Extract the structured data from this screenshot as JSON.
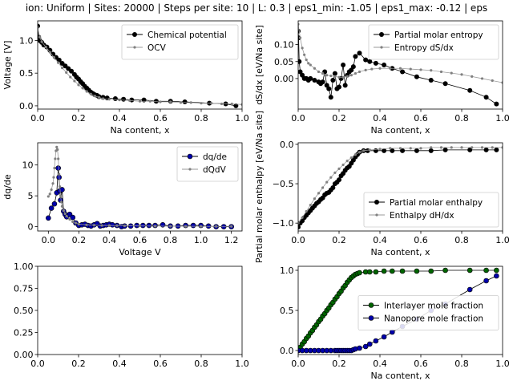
{
  "figure": {
    "title": "ion: Uniform | Sites: 20000 | Steps per site: 10 | L: 0.3 | eps1_min: -1.05 | eps1_max: -0.12 | eps"
  },
  "chart_data": [
    {
      "type": "line",
      "xlabel": "Na content, x",
      "ylabel": "Voltage [V]",
      "xlim": [
        0,
        1
      ],
      "ylim": [
        -0.05,
        1.3
      ],
      "xticks": [
        "0.0",
        "0.2",
        "0.4",
        "0.6",
        "0.8",
        "1.0"
      ],
      "yticks": [
        "0.0",
        "0.5",
        "1.0"
      ],
      "ytick_values": [
        0,
        0.5,
        1.0
      ],
      "xtick_values": [
        0,
        0.2,
        0.4,
        0.6,
        0.8,
        1.0
      ],
      "legend": "top-right",
      "series": [
        {
          "name": "Chemical potential",
          "style": "dots",
          "color": "#000000",
          "x": [
            0,
            0.005,
            0.01,
            0.02,
            0.03,
            0.045,
            0.06,
            0.075,
            0.09,
            0.105,
            0.12,
            0.135,
            0.15,
            0.165,
            0.18,
            0.19,
            0.2,
            0.21,
            0.22,
            0.23,
            0.24,
            0.25,
            0.26,
            0.27,
            0.28,
            0.29,
            0.3,
            0.32,
            0.34,
            0.38,
            0.42,
            0.46,
            0.52,
            0.58,
            0.65,
            0.72,
            0.84,
            0.92,
            0.97
          ],
          "y": [
            1.22,
            1.05,
            1.0,
            0.97,
            0.93,
            0.9,
            0.85,
            0.79,
            0.74,
            0.7,
            0.65,
            0.61,
            0.57,
            0.53,
            0.48,
            0.44,
            0.41,
            0.37,
            0.34,
            0.3,
            0.27,
            0.24,
            0.21,
            0.19,
            0.17,
            0.16,
            0.14,
            0.13,
            0.12,
            0.11,
            0.1,
            0.09,
            0.09,
            0.07,
            0.07,
            0.06,
            0.04,
            0.03,
            0.0
          ]
        },
        {
          "name": "OCV",
          "style": "small",
          "color": "#808080",
          "x": [
            0,
            0.01,
            0.02,
            0.04,
            0.06,
            0.08,
            0.1,
            0.12,
            0.14,
            0.16,
            0.18,
            0.2,
            0.22,
            0.24,
            0.26,
            0.28,
            0.3,
            0.32,
            0.35,
            0.4,
            0.45,
            0.5,
            0.55,
            0.6,
            0.65,
            0.7,
            0.75,
            0.8,
            0.85,
            0.9,
            0.95,
            1.0
          ],
          "y": [
            1.2,
            1.05,
            0.98,
            0.9,
            0.82,
            0.74,
            0.66,
            0.58,
            0.51,
            0.44,
            0.38,
            0.32,
            0.27,
            0.22,
            0.18,
            0.15,
            0.13,
            0.11,
            0.1,
            0.09,
            0.08,
            0.07,
            0.07,
            0.06,
            0.06,
            0.05,
            0.05,
            0.04,
            0.04,
            0.03,
            0.03,
            0.02
          ]
        }
      ]
    },
    {
      "type": "line",
      "xlabel": "Na content, x",
      "ylabel": "dS/dx [eV/Na site]",
      "xlim": [
        0,
        1
      ],
      "ylim": [
        -0.09,
        0.17
      ],
      "xticks": [
        "0.0",
        "0.2",
        "0.4",
        "0.6",
        "0.8",
        "1.0"
      ],
      "yticks": [
        "0.00",
        "0.05",
        "0.10"
      ],
      "ytick_values": [
        0,
        0.05,
        0.1
      ],
      "xtick_values": [
        0,
        0.2,
        0.4,
        0.6,
        0.8,
        1.0
      ],
      "legend": "top-right",
      "series": [
        {
          "name": "Partial molar entropy",
          "style": "dots",
          "color": "#000000",
          "x": [
            0,
            0.002,
            0.005,
            0.01,
            0.02,
            0.03,
            0.04,
            0.05,
            0.06,
            0.08,
            0.1,
            0.11,
            0.12,
            0.13,
            0.14,
            0.15,
            0.16,
            0.17,
            0.18,
            0.19,
            0.2,
            0.21,
            0.22,
            0.23,
            0.24,
            0.25,
            0.26,
            0.27,
            0.28,
            0.3,
            0.33,
            0.35,
            0.38,
            0.42,
            0.46,
            0.51,
            0.58,
            0.65,
            0.72,
            0.84,
            0.92,
            0.97
          ],
          "y": [
            0.14,
            0.12,
            0.05,
            0.02,
            0.01,
            0.0,
            0.0,
            -0.005,
            0.0,
            -0.005,
            -0.01,
            -0.015,
            -0.01,
            0.02,
            -0.02,
            -0.03,
            -0.055,
            -0.005,
            0.015,
            -0.03,
            -0.025,
            0.0,
            0.04,
            -0.02,
            0.01,
            0.02,
            0.025,
            0.035,
            0.065,
            0.075,
            0.055,
            0.05,
            0.045,
            0.04,
            0.03,
            0.02,
            0.005,
            -0.005,
            -0.015,
            -0.035,
            -0.055,
            -0.075
          ]
        },
        {
          "name": "Entropy dS/dx",
          "style": "small",
          "color": "#808080",
          "x": [
            0,
            0.01,
            0.02,
            0.03,
            0.04,
            0.05,
            0.06,
            0.08,
            0.1,
            0.12,
            0.14,
            0.16,
            0.18,
            0.2,
            0.22,
            0.24,
            0.26,
            0.28,
            0.3,
            0.33,
            0.36,
            0.4,
            0.45,
            0.5,
            0.55,
            0.6,
            0.65,
            0.7,
            0.75,
            0.8,
            0.85,
            0.9,
            0.95,
            1.0
          ],
          "y": [
            0.16,
            0.12,
            0.09,
            0.07,
            0.055,
            0.045,
            0.04,
            0.03,
            0.02,
            0.015,
            0.01,
            0.008,
            0.006,
            0.004,
            0.004,
            0.006,
            0.01,
            0.015,
            0.02,
            0.025,
            0.028,
            0.03,
            0.03,
            0.03,
            0.028,
            0.026,
            0.024,
            0.02,
            0.016,
            0.012,
            0.006,
            0.0,
            -0.006,
            -0.012
          ]
        }
      ]
    },
    {
      "type": "line",
      "xlabel": "Voltage V",
      "ylabel": "dq/de",
      "xlim": [
        -0.07,
        1.27
      ],
      "ylim": [
        -0.7,
        13.6
      ],
      "xticks": [
        "0.0",
        "0.2",
        "0.4",
        "0.6",
        "0.8",
        "1.0",
        "1.2"
      ],
      "yticks": [
        "0",
        "5",
        "10"
      ],
      "ytick_values": [
        0,
        5,
        10
      ],
      "xtick_values": [
        0,
        0.2,
        0.4,
        0.6,
        0.8,
        1.0,
        1.2
      ],
      "legend": "top-right",
      "series": [
        {
          "name": "dq/de",
          "style": "bluedots",
          "color": "#0000aa",
          "x": [
            0.0,
            0.02,
            0.04,
            0.055,
            0.065,
            0.07,
            0.075,
            0.08,
            0.09,
            0.1,
            0.11,
            0.12,
            0.14,
            0.16,
            0.18,
            0.2,
            0.22,
            0.24,
            0.26,
            0.28,
            0.3,
            0.32,
            0.34,
            0.36,
            0.38,
            0.4,
            0.42,
            0.45,
            0.48,
            0.5,
            0.54,
            0.58,
            0.62,
            0.66,
            0.7,
            0.75,
            0.8,
            0.85,
            0.9,
            0.95,
            1.0,
            1.05,
            1.1,
            1.15,
            1.2
          ],
          "y": [
            1.4,
            3.0,
            3.7,
            5.5,
            9.5,
            8.0,
            5.8,
            4.3,
            6.0,
            2.5,
            2.0,
            1.6,
            2.0,
            1.5,
            0.6,
            0.2,
            0.3,
            0.4,
            0.2,
            0.1,
            0.3,
            0.5,
            0.1,
            0.2,
            0.3,
            0.4,
            0.3,
            0.2,
            0.0,
            0.1,
            0.1,
            0.2,
            0.2,
            0.2,
            0.2,
            0.3,
            0.1,
            0.1,
            0.2,
            0.2,
            0.2,
            0.1,
            0.0,
            0.0,
            0.0
          ]
        },
        {
          "name": "dQdV",
          "style": "small",
          "color": "#808080",
          "x": [
            0.0,
            0.01,
            0.02,
            0.03,
            0.035,
            0.04,
            0.045,
            0.05,
            0.055,
            0.06,
            0.065,
            0.07,
            0.075,
            0.08,
            0.085,
            0.09,
            0.1,
            0.11,
            0.12,
            0.14,
            0.16,
            0.18,
            0.2,
            0.25,
            0.3,
            0.35,
            0.4,
            0.45,
            0.5,
            0.6,
            0.7,
            0.8,
            0.9,
            1.0,
            1.1,
            1.2
          ],
          "y": [
            4.9,
            5.3,
            6.0,
            7.0,
            8.0,
            9.5,
            11.0,
            12.3,
            12.9,
            12.5,
            11.0,
            8.5,
            6.5,
            5.0,
            4.0,
            3.3,
            2.6,
            2.1,
            1.7,
            1.2,
            0.8,
            0.6,
            0.4,
            0.3,
            0.25,
            0.2,
            0.2,
            0.18,
            0.15,
            0.12,
            0.1,
            0.08,
            0.07,
            0.06,
            0.05,
            0.05
          ]
        }
      ]
    },
    {
      "type": "line",
      "xlabel": "Na content, x",
      "ylabel": "Partial molar enthalpy [eV/Na site]",
      "xlim": [
        0,
        1
      ],
      "ylim": [
        -1.1,
        0.02
      ],
      "xticks": [
        "0.0",
        "0.2",
        "0.4",
        "0.6",
        "0.8",
        "1.0"
      ],
      "yticks": [
        "−1.0",
        "−0.5",
        "0.0"
      ],
      "ytick_values": [
        -1.0,
        -0.5,
        0.0
      ],
      "xtick_values": [
        0,
        0.2,
        0.4,
        0.6,
        0.8,
        1.0
      ],
      "legend": "bottom-right",
      "series": [
        {
          "name": "Partial molar enthalpy",
          "style": "dots",
          "color": "#000000",
          "x": [
            0,
            0.01,
            0.02,
            0.03,
            0.04,
            0.05,
            0.06,
            0.07,
            0.08,
            0.09,
            0.1,
            0.11,
            0.12,
            0.13,
            0.14,
            0.15,
            0.16,
            0.17,
            0.18,
            0.19,
            0.2,
            0.21,
            0.22,
            0.23,
            0.24,
            0.25,
            0.26,
            0.27,
            0.28,
            0.29,
            0.3,
            0.32,
            0.34,
            0.38,
            0.42,
            0.46,
            0.51,
            0.58,
            0.65,
            0.72,
            0.84,
            0.92,
            0.97
          ],
          "y": [
            -1.05,
            -1.0,
            -0.97,
            -0.93,
            -0.9,
            -0.87,
            -0.84,
            -0.81,
            -0.78,
            -0.75,
            -0.73,
            -0.7,
            -0.68,
            -0.64,
            -0.62,
            -0.61,
            -0.58,
            -0.55,
            -0.5,
            -0.48,
            -0.45,
            -0.4,
            -0.37,
            -0.33,
            -0.3,
            -0.28,
            -0.24,
            -0.2,
            -0.16,
            -0.13,
            -0.1,
            -0.08,
            -0.08,
            -0.08,
            -0.08,
            -0.08,
            -0.08,
            -0.08,
            -0.08,
            -0.07,
            -0.07,
            -0.07,
            -0.07
          ]
        },
        {
          "name": "Enthalpy dH/dx",
          "style": "small",
          "color": "#808080",
          "x": [
            0,
            0.02,
            0.04,
            0.06,
            0.08,
            0.1,
            0.12,
            0.14,
            0.16,
            0.18,
            0.2,
            0.22,
            0.24,
            0.26,
            0.28,
            0.3,
            0.32,
            0.35,
            0.4,
            0.45,
            0.5,
            0.55,
            0.6,
            0.65,
            0.7,
            0.75,
            0.8,
            0.85,
            0.9,
            0.95,
            1.0
          ],
          "y": [
            -1.0,
            -0.93,
            -0.85,
            -0.77,
            -0.69,
            -0.62,
            -0.55,
            -0.48,
            -0.42,
            -0.36,
            -0.31,
            -0.26,
            -0.21,
            -0.17,
            -0.13,
            -0.1,
            -0.08,
            -0.07,
            -0.06,
            -0.05,
            -0.05,
            -0.05,
            -0.05,
            -0.04,
            -0.04,
            -0.04,
            -0.04,
            -0.04,
            -0.04,
            -0.04,
            -0.04
          ]
        }
      ]
    },
    {
      "type": "empty",
      "xlim": [
        0,
        1
      ],
      "ylim": [
        0,
        1
      ],
      "xticks": [
        "0.0",
        "0.2",
        "0.4",
        "0.6",
        "0.8",
        "1.0"
      ],
      "yticks": [
        "0.00",
        "0.25",
        "0.50",
        "0.75",
        "1.00"
      ],
      "ytick_values": [
        0,
        0.25,
        0.5,
        0.75,
        1.0
      ],
      "xtick_values": [
        0,
        0.2,
        0.4,
        0.6,
        0.8,
        1.0
      ],
      "series": []
    },
    {
      "type": "line",
      "xlabel": "Na content, x",
      "ylabel": "",
      "xlim": [
        0,
        1
      ],
      "ylim": [
        -0.05,
        1.05
      ],
      "xticks": [
        "0.0",
        "0.2",
        "0.4",
        "0.6",
        "0.8",
        "1.0"
      ],
      "yticks": [
        "0.0",
        "0.5",
        "1.0"
      ],
      "ytick_values": [
        0,
        0.5,
        1.0
      ],
      "xtick_values": [
        0,
        0.2,
        0.4,
        0.6,
        0.8,
        1.0
      ],
      "legend": "center-right",
      "series": [
        {
          "name": "Interlayer mole fraction",
          "style": "greendots",
          "color": "#006400",
          "x": [
            0,
            0.01,
            0.02,
            0.03,
            0.04,
            0.05,
            0.06,
            0.07,
            0.08,
            0.09,
            0.1,
            0.11,
            0.12,
            0.13,
            0.14,
            0.15,
            0.16,
            0.17,
            0.18,
            0.19,
            0.2,
            0.21,
            0.22,
            0.23,
            0.24,
            0.25,
            0.26,
            0.27,
            0.28,
            0.29,
            0.3,
            0.33,
            0.35,
            0.38,
            0.42,
            0.46,
            0.51,
            0.58,
            0.65,
            0.72,
            0.84,
            0.92,
            0.97
          ],
          "y": [
            0.0,
            0.04,
            0.08,
            0.11,
            0.15,
            0.18,
            0.22,
            0.25,
            0.29,
            0.32,
            0.36,
            0.39,
            0.43,
            0.46,
            0.5,
            0.53,
            0.57,
            0.6,
            0.64,
            0.67,
            0.71,
            0.74,
            0.78,
            0.81,
            0.85,
            0.88,
            0.91,
            0.93,
            0.95,
            0.96,
            0.97,
            0.98,
            0.98,
            0.98,
            0.99,
            0.99,
            0.99,
            0.99,
            0.99,
            1.0,
            1.0,
            1.0,
            1.0
          ]
        },
        {
          "name": "Nanopore mole fraction",
          "style": "bluedots",
          "color": "#0000aa",
          "x": [
            0,
            0.02,
            0.04,
            0.06,
            0.08,
            0.1,
            0.12,
            0.14,
            0.16,
            0.18,
            0.19,
            0.2,
            0.21,
            0.22,
            0.23,
            0.24,
            0.25,
            0.26,
            0.27,
            0.28,
            0.3,
            0.33,
            0.35,
            0.38,
            0.42,
            0.46,
            0.51,
            0.58,
            0.65,
            0.72,
            0.84,
            0.92,
            0.97
          ],
          "y": [
            0.0,
            0.0,
            0.0,
            0.0,
            0.0,
            0.0,
            0.0,
            0.0,
            0.0,
            0.0,
            0.0,
            0.0,
            0.0,
            0.0,
            0.0,
            0.0,
            0.0,
            0.0,
            0.01,
            0.02,
            0.03,
            0.05,
            0.08,
            0.12,
            0.17,
            0.23,
            0.3,
            0.39,
            0.5,
            0.58,
            0.76,
            0.87,
            0.93
          ]
        }
      ]
    }
  ]
}
